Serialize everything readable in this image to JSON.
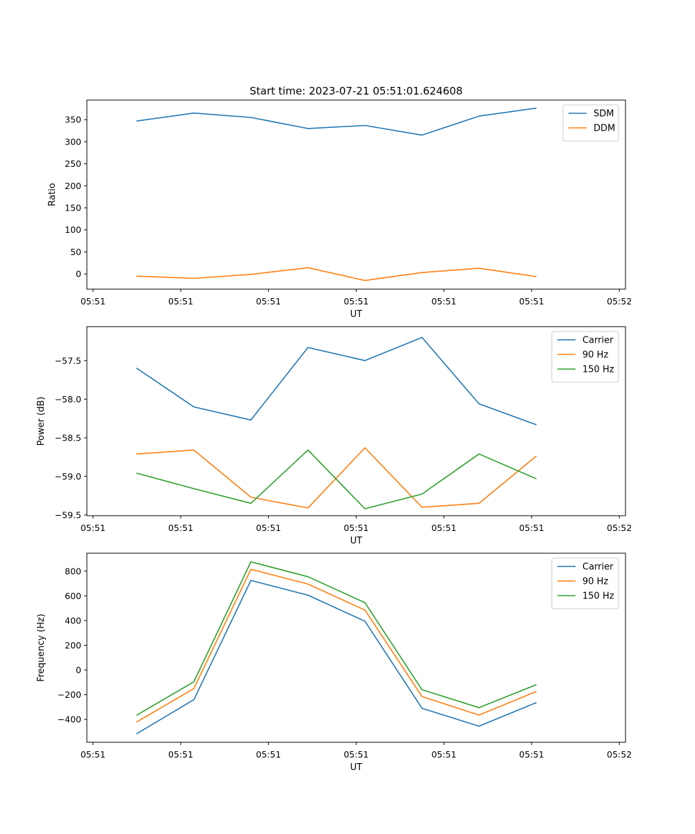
{
  "figure_title": "Start time: 2023-07-21 05:51:01.624608",
  "colors": {
    "c0": "#1f77b4",
    "c1": "#ff7f0e",
    "c2": "#2ca02c"
  },
  "chart_data": [
    {
      "type": "line",
      "xlabel": "UT",
      "ylabel": "Ratio",
      "x_tick_labels": [
        "05:51",
        "05:51",
        "05:51",
        "05:51",
        "05:51",
        "05:51",
        "05:51"
      ],
      "x_tick_labels_end": "05:52",
      "x_tick_values": [
        0,
        1,
        2,
        3,
        4,
        5,
        6
      ],
      "xlim": [
        -0.07,
        6.07
      ],
      "x": [
        0.5,
        1.15,
        1.8,
        2.45,
        3.1,
        3.75,
        4.4,
        5.05
      ],
      "ylim": [
        -34.5,
        394.5
      ],
      "yticks": [
        0,
        50,
        100,
        150,
        200,
        250,
        300,
        350
      ],
      "legend_position": "upper-right",
      "series": [
        {
          "name": "SDM",
          "color": "#1f77b4",
          "values": [
            347,
            365,
            355,
            330,
            337,
            315,
            358,
            376
          ]
        },
        {
          "name": "DDM",
          "color": "#ff7f0e",
          "values": [
            -5,
            -10,
            -1,
            14,
            -15,
            3,
            13,
            -6
          ]
        }
      ]
    },
    {
      "type": "line",
      "xlabel": "UT",
      "ylabel": "Power (dB)",
      "x_tick_labels": [
        "05:51",
        "05:51",
        "05:51",
        "05:51",
        "05:51",
        "05:51",
        "05:51"
      ],
      "x_tick_labels_end": "05:52",
      "x_tick_values": [
        0,
        1,
        2,
        3,
        4,
        5,
        6
      ],
      "xlim": [
        -0.07,
        6.07
      ],
      "x": [
        0.5,
        1.15,
        1.8,
        2.45,
        3.1,
        3.75,
        4.4,
        5.05
      ],
      "ylim": [
        -59.51,
        -57.06
      ],
      "yticks": [
        -59.5,
        -59.0,
        -58.5,
        -58.0,
        -57.5
      ],
      "ytick_labels": [
        "−59.5",
        "−59.0",
        "−58.5",
        "−58.0",
        "−57.5"
      ],
      "legend_position": "upper-right",
      "series": [
        {
          "name": "Carrier",
          "color": "#1f77b4",
          "values": [
            -57.6,
            -58.1,
            -58.27,
            -57.33,
            -57.5,
            -57.2,
            -58.06,
            -58.33
          ]
        },
        {
          "name": "90 Hz",
          "color": "#ff7f0e",
          "values": [
            -58.71,
            -58.66,
            -59.27,
            -59.41,
            -58.63,
            -59.4,
            -59.35,
            -58.74
          ]
        },
        {
          "name": "150 Hz",
          "color": "#2ca02c",
          "values": [
            -58.96,
            -59.16,
            -59.35,
            -58.66,
            -59.42,
            -59.23,
            -58.71,
            -59.03
          ]
        }
      ]
    },
    {
      "type": "line",
      "xlabel": "UT",
      "ylabel": "Frequency (Hz)",
      "x_tick_labels": [
        "05:51",
        "05:51",
        "05:51",
        "05:51",
        "05:51",
        "05:51",
        "05:51"
      ],
      "x_tick_labels_end": "05:52",
      "x_tick_values": [
        0,
        1,
        2,
        3,
        4,
        5,
        6
      ],
      "xlim": [
        -0.07,
        6.07
      ],
      "x": [
        0.5,
        1.15,
        1.8,
        2.45,
        3.1,
        3.75,
        4.4,
        5.05
      ],
      "ylim": [
        -585,
        945
      ],
      "yticks": [
        -400,
        -200,
        0,
        200,
        400,
        600,
        800
      ],
      "ytick_labels": [
        "−400",
        "−200",
        "0",
        "200",
        "400",
        "600",
        "800"
      ],
      "legend_position": "upper-right",
      "series": [
        {
          "name": "Carrier",
          "color": "#1f77b4",
          "values": [
            -515,
            -240,
            725,
            605,
            395,
            -310,
            -455,
            -265
          ]
        },
        {
          "name": "90 Hz",
          "color": "#ff7f0e",
          "values": [
            -420,
            -150,
            815,
            695,
            485,
            -215,
            -365,
            -175
          ]
        },
        {
          "name": "150 Hz",
          "color": "#2ca02c",
          "values": [
            -365,
            -95,
            875,
            755,
            545,
            -160,
            -305,
            -120
          ]
        }
      ]
    }
  ]
}
